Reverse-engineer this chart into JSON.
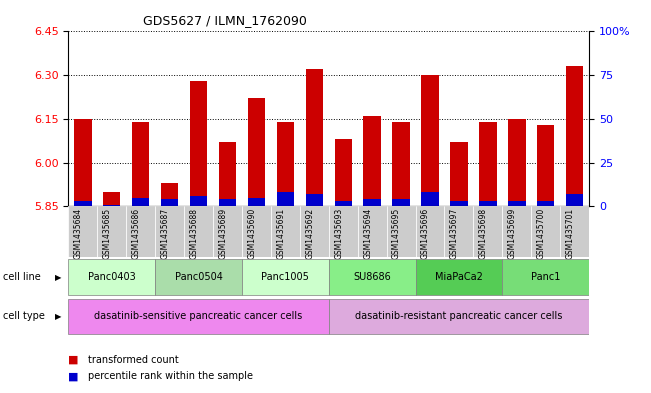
{
  "title": "GDS5627 / ILMN_1762090",
  "samples": [
    "GSM1435684",
    "GSM1435685",
    "GSM1435686",
    "GSM1435687",
    "GSM1435688",
    "GSM1435689",
    "GSM1435690",
    "GSM1435691",
    "GSM1435692",
    "GSM1435693",
    "GSM1435694",
    "GSM1435695",
    "GSM1435696",
    "GSM1435697",
    "GSM1435698",
    "GSM1435699",
    "GSM1435700",
    "GSM1435701"
  ],
  "transformed_count": [
    6.15,
    5.9,
    6.14,
    5.93,
    6.28,
    6.07,
    6.22,
    6.14,
    6.32,
    6.08,
    6.16,
    6.14,
    6.3,
    6.07,
    6.14,
    6.15,
    6.13,
    6.33
  ],
  "percentile_rank": [
    3,
    1,
    5,
    4,
    6,
    4,
    5,
    8,
    7,
    3,
    4,
    4,
    8,
    3,
    3,
    3,
    3,
    7
  ],
  "ylim_left": [
    5.85,
    6.45
  ],
  "ylim_right": [
    0,
    100
  ],
  "yticks_left": [
    5.85,
    6.0,
    6.15,
    6.3,
    6.45
  ],
  "yticks_right": [
    0,
    25,
    50,
    75,
    100
  ],
  "ytick_labels_right": [
    "0",
    "25",
    "50",
    "75",
    "100%"
  ],
  "bar_color_red": "#cc0000",
  "bar_color_blue": "#0000cc",
  "bar_width": 0.6,
  "cell_lines": [
    {
      "label": "Panc0403",
      "start": 0,
      "end": 3,
      "color": "#ccffcc"
    },
    {
      "label": "Panc0504",
      "start": 3,
      "end": 6,
      "color": "#aaddaa"
    },
    {
      "label": "Panc1005",
      "start": 6,
      "end": 9,
      "color": "#ccffcc"
    },
    {
      "label": "SU8686",
      "start": 9,
      "end": 12,
      "color": "#88ee88"
    },
    {
      "label": "MiaPaCa2",
      "start": 12,
      "end": 15,
      "color": "#55cc55"
    },
    {
      "label": "Panc1",
      "start": 15,
      "end": 18,
      "color": "#77dd77"
    }
  ],
  "cell_type_sensitive": {
    "label": "dasatinib-sensitive pancreatic cancer cells",
    "start": 0,
    "end": 9,
    "color": "#ee88ee"
  },
  "cell_type_resistant": {
    "label": "dasatinib-resistant pancreatic cancer cells",
    "start": 9,
    "end": 18,
    "color": "#ddaadd"
  },
  "grid_color": "black",
  "left_axis_color": "red",
  "right_axis_color": "blue"
}
